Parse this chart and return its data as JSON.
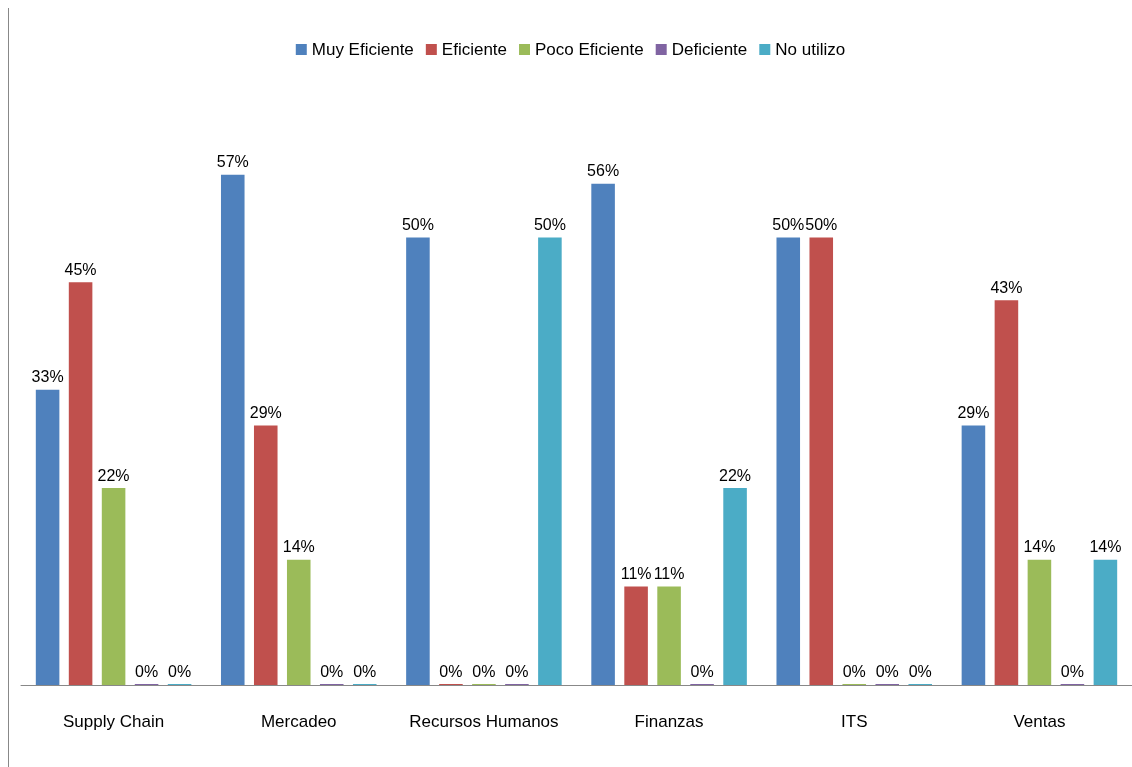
{
  "chart_data": {
    "type": "bar",
    "categories": [
      "Supply Chain",
      "Mercadeo",
      "Recursos Humanos",
      "Finanzas",
      "ITS",
      "Ventas"
    ],
    "series": [
      {
        "name": "Muy Eficiente",
        "color": "#4f81bd",
        "values": [
          33,
          57,
          50,
          56,
          50,
          29
        ],
        "value_labels": [
          "33%",
          "57%",
          "50%",
          "56%",
          "50%",
          "29%"
        ]
      },
      {
        "name": "Eficiente",
        "color": "#c0504d",
        "values": [
          45,
          29,
          0,
          11,
          50,
          43
        ],
        "value_labels": [
          "45%",
          "29%",
          "0%",
          "11%",
          "50%",
          "43%"
        ]
      },
      {
        "name": "Poco Eficiente",
        "color": "#9bbb59",
        "values": [
          22,
          14,
          0,
          11,
          0,
          14
        ],
        "value_labels": [
          "22%",
          "14%",
          "0%",
          "11%",
          "0%",
          "14%"
        ]
      },
      {
        "name": "Deficiente",
        "color": "#8064a2",
        "values": [
          0,
          0,
          0,
          0,
          0,
          0
        ],
        "value_labels": [
          "0%",
          "0%",
          "0%",
          "0%",
          "0%",
          "0%"
        ]
      },
      {
        "name": "No utilizo",
        "color": "#4bacc6",
        "values": [
          0,
          0,
          50,
          22,
          0,
          14
        ],
        "value_labels": [
          "0%",
          "0%",
          "50%",
          "22%",
          "0%",
          "14%"
        ]
      }
    ],
    "legend": "top"
  }
}
